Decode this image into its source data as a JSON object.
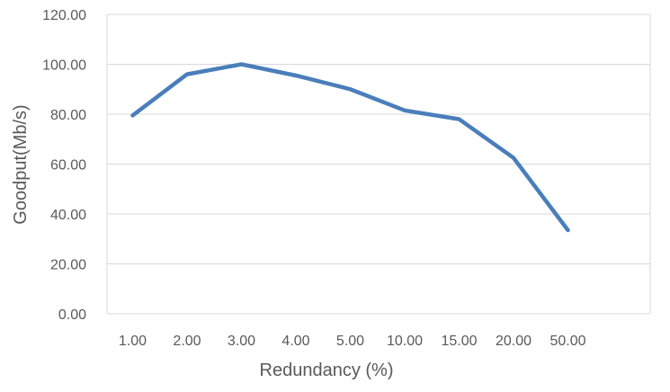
{
  "chart_data": {
    "type": "line",
    "title": "",
    "xlabel": "Redundancy (%)",
    "ylabel": "Goodput(Mb/s)",
    "categories": [
      "1.00",
      "2.00",
      "3.00",
      "4.00",
      "5.00",
      "10.00",
      "15.00",
      "20.00",
      "50.00"
    ],
    "series": [
      {
        "values": [
          79.5,
          96,
          100,
          95.5,
          90,
          81.5,
          78,
          62.5,
          33.5
        ]
      }
    ],
    "ylim": [
      0,
      120
    ],
    "yticks": [
      "0.00",
      "20.00",
      "40.00",
      "60.00",
      "80.00",
      "100.00",
      "120.00"
    ],
    "grid": true,
    "legend": "none",
    "colors": {
      "series": "#4a7ebb",
      "grid": "#d9d9d9",
      "text": "#595959"
    }
  }
}
